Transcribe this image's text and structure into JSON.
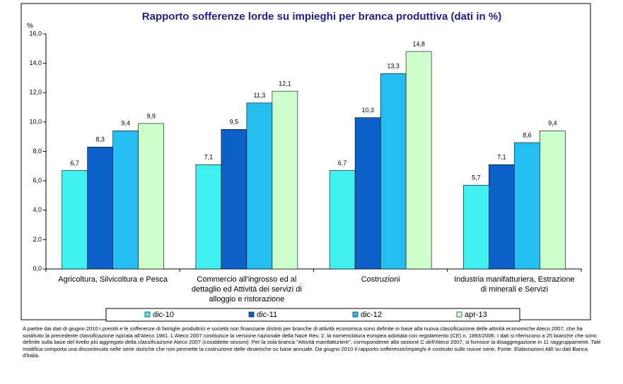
{
  "chart_data": {
    "type": "bar",
    "title": "Rapporto sofferenze lorde su impieghi per branca produttiva (dati in %)",
    "y_label": "%",
    "categories": [
      "Agricoltura, Silvicoltura e Pesca",
      "Commercio all'ingrosso ed al dettaglio ed Attività dei servizi di alloggio e ristorazione",
      "Costruzioni",
      "Industria manifatturiera, Estrazione di minerali e Servizi"
    ],
    "series": [
      {
        "name": "dic-10",
        "color": "#3ff0f0",
        "values": [
          6.7,
          7.1,
          6.7,
          5.7
        ],
        "value_labels": [
          "6,7",
          "7,1",
          "6,7",
          "5,7"
        ]
      },
      {
        "name": "dic-11",
        "color": "#0c60c8",
        "values": [
          8.3,
          9.5,
          10.3,
          7.1
        ],
        "value_labels": [
          "8,3",
          "9,5",
          "10,3",
          "7,1"
        ]
      },
      {
        "name": "dic-12",
        "color": "#24bff0",
        "values": [
          9.4,
          11.3,
          13.3,
          8.6
        ],
        "value_labels": [
          "9,4",
          "11,3",
          "13,3",
          "8,6"
        ]
      },
      {
        "name": "apr-13",
        "color": "#ccffcc",
        "values": [
          9.9,
          12.1,
          14.8,
          9.4
        ],
        "value_labels": [
          "9,9",
          "12,1",
          "14,8",
          "9,4"
        ]
      }
    ],
    "ylim": [
      0,
      16
    ],
    "yticks": [
      {
        "value": 0,
        "label": "0,0"
      },
      {
        "value": 2,
        "label": "2,0"
      },
      {
        "value": 4,
        "label": "4,0"
      },
      {
        "value": 6,
        "label": "6,0"
      },
      {
        "value": 8,
        "label": "8,0"
      },
      {
        "value": 10,
        "label": "10,0"
      },
      {
        "value": 12,
        "label": "12,0"
      },
      {
        "value": 14,
        "label": "14,0"
      },
      {
        "value": 16,
        "label": "16,0"
      }
    ],
    "legend": "bottom",
    "note": "A partire dai dati di giugno 2010 i prestiti e le sofferenze di famiglie produttrici e società non finanziarie distinti per branche di attività economica sono definite in base alla nuova classificazione delle attività economiche Ateco 2007, che ha sostituito la precedente classificazione ispirata all'Ateco 1981. L'Ateco 2007 costituisce la versione nazionale della Nace Rev. 2, la nomenclatura europea adottata con regolamento (CE) n. 1893/2006. I dati si riferiscono a 25 branche che sono definite sulla base del livello più aggregato della classificazione Ateco 2007 (cosiddette sezioni). Per la sola branca \"Attività manifatturiere\", corrispondente alla sezione C dell'Ateco 2007, si fornisce la disaggregazione in 11 raggruppamenti. Tale modifica comporta una discontinuità nelle serie storiche che non permette la costruzione delle dinamiche su base annuale. Da giugno 2010 il rapporto sofferenze/impieghi è costruito sulle nuove serie. Fonte: Elaborazioni ABI su dati Banca d'Italia."
  }
}
